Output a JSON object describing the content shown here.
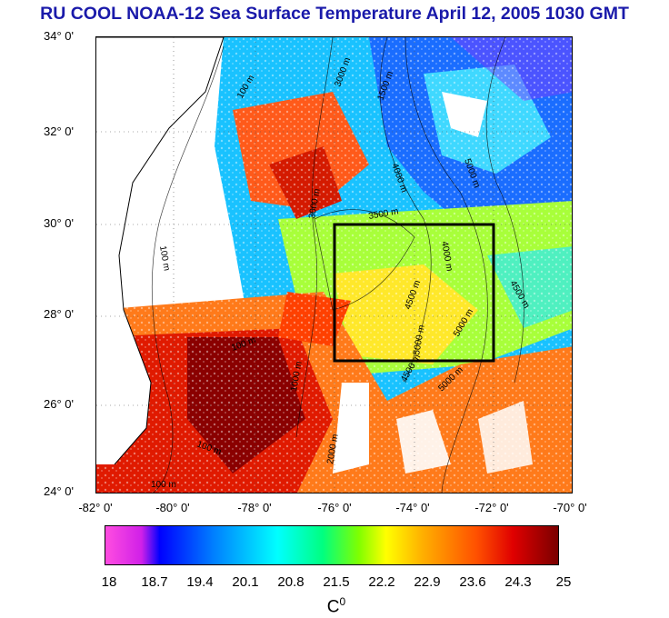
{
  "title": "RU COOL  NOAA-12 Sea Surface Temperature April 12, 2005 1030 GMT",
  "lat_labels": [
    "34° 0'",
    "32° 0'",
    "30° 0'",
    "28° 0'",
    "26° 0'",
    "24° 0'"
  ],
  "lon_labels": [
    "-82° 0'",
    "-80° 0'",
    "-78° 0'",
    "-76° 0'",
    "-74° 0'",
    "-72° 0'",
    "-70° 0'"
  ],
  "colorbar_labels": [
    "18",
    "18.7",
    "19.4",
    "20.1",
    "20.8",
    "21.5",
    "22.2",
    "22.9",
    "23.6",
    "24.3",
    "25"
  ],
  "unit": "C",
  "unit_sup": "0",
  "contour_labels": [
    "100 m",
    "3000 m",
    "4000 m",
    "5000 m",
    "1500 m",
    "4500 m",
    "5000 m",
    "3500 m",
    "100 m",
    "100 m",
    "3000 m",
    "4500 m",
    "4000 m",
    "5000 m",
    "2000 m",
    "1000 m",
    "100 m",
    "100 m",
    "4500 m",
    "5000 m"
  ]
}
